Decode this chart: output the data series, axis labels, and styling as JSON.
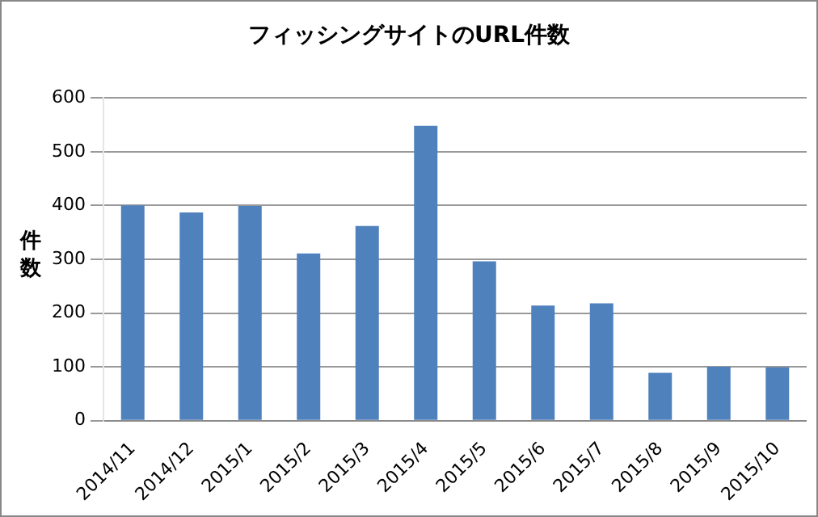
{
  "chart_data": {
    "type": "bar",
    "title": "フィッシングサイトのURL件数",
    "ylabel": "件数",
    "categories": [
      "2014/11",
      "2014/12",
      "2015/1",
      "2015/2",
      "2015/3",
      "2015/4",
      "2015/5",
      "2015/6",
      "2015/7",
      "2015/8",
      "2015/9",
      "2015/10"
    ],
    "values": [
      400,
      387,
      399,
      311,
      362,
      548,
      296,
      214,
      218,
      89,
      100,
      99
    ],
    "color": "#4f81bd",
    "ylim": [
      0,
      600
    ],
    "yticks": [
      0,
      100,
      200,
      300,
      400,
      500,
      600
    ],
    "grid": "y",
    "legend": false
  }
}
